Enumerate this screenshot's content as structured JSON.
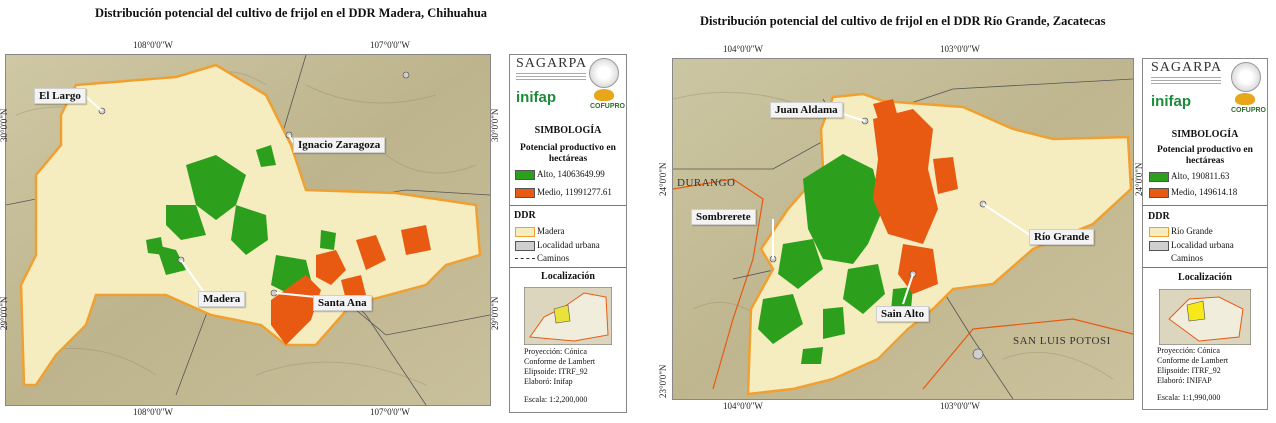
{
  "colors": {
    "alto": "#2ca01c",
    "medio": "#e85a12",
    "boundary": "#f0a030",
    "ddr_fill": "#f5ecc0",
    "urban": "#cfcfcf",
    "terrain": "#c8bf9a"
  },
  "left": {
    "title": "Distribución potencial del cultivo de frijol en el DDR Madera, Chihuahua",
    "top_ticks": [
      "108°0'0\"W",
      "107°0'0\"W"
    ],
    "bottom_ticks": [
      "108°0'0\"W",
      "107°0'0\"W"
    ],
    "left_ticks": [
      "30°0'0\"N",
      "29°0'0\"N"
    ],
    "right_ticks": [
      "30°0'0\"N",
      "29°0'0\"N"
    ],
    "callouts": {
      "el_largo": "El Largo",
      "ignacio": "Ignacio Zaragoza",
      "madera": "Madera",
      "santa_ana": "Santa Ana"
    },
    "legend": {
      "sagarpa": "SAGARPA",
      "inifap": "inifap",
      "cofupro": "COFUPRO",
      "simbologia": "SIMBOLOGÍA",
      "potencial": "Potencial productivo en hectáreas",
      "alto": "Alto, 14063649.99",
      "medio": "Medio, 11991277.61",
      "ddr": "DDR",
      "ddr_item": "Madera",
      "localidad": "Localidad urbana",
      "caminos": "Caminos",
      "localizacion": "Localización",
      "proyeccion": "Proyección: Cónica",
      "conforme": "Conforme de Lambert",
      "elipsoide": "Elipsoide: ITRF_92",
      "elaboro": "Elaboró: Inifap",
      "escala": "Escala: 1:2,200,000"
    }
  },
  "right": {
    "title": "Distribución potencial del cultivo de frijol en el DDR Río Grande, Zacatecas",
    "top_ticks": [
      "104°0'0\"W",
      "103°0'0\"W"
    ],
    "bottom_ticks": [
      "104°0'0\"W",
      "103°0'0\"W"
    ],
    "left_ticks": [
      "24°0'0\"N",
      "23°0'0\"N"
    ],
    "right_ticks": [
      "24°0'0\"N"
    ],
    "callouts": {
      "juan_aldama": "Juan Aldama",
      "sombrerete": "Sombrerete",
      "rio_grande": "Río Grande",
      "sain_alto": "Sain Alto"
    },
    "state_labels": {
      "durango": "DURANGO",
      "slp": "SAN LUIS POTOSI"
    },
    "legend": {
      "sagarpa": "SAGARPA",
      "inifap": "inifap",
      "cofupro": "COFUPRO",
      "simbologia": "SIMBOLOGÍA",
      "potencial": "Potencial productivo en hectáreas",
      "alto": "Alto, 190811.63",
      "medio": "Medio, 149614.18",
      "ddr": "DDR",
      "ddr_item": "Río Grande",
      "localidad": "Localidad urbana",
      "caminos": "Caminos",
      "localizacion": "Localización",
      "proyeccion": "Proyección: Cónica",
      "conforme": "Conforme de Lambert",
      "elipsoide": "Elipsoide: ITRF_92",
      "elaboro": "Elaboró: INIFAP",
      "escala": "Escala: 1:1,990,000"
    }
  }
}
